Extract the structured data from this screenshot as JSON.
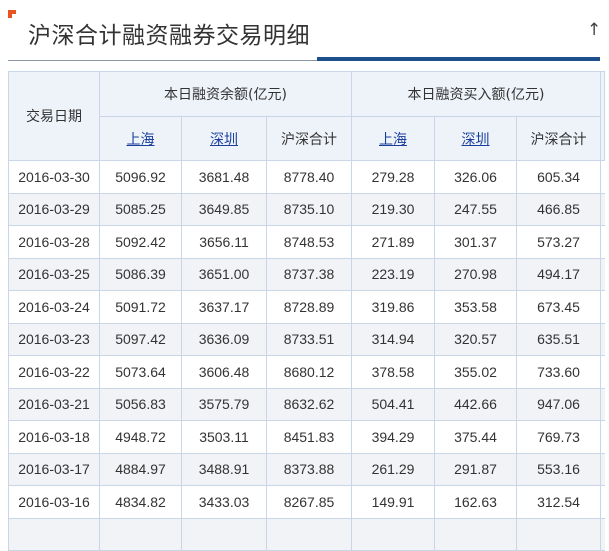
{
  "title": "沪深合计融资融券交易明细",
  "collapse_icon": "up-arrow",
  "header": {
    "date": "交易日期",
    "group1": "本日融资余额(亿元)",
    "group2": "本日融资买入额(亿元)",
    "sub": [
      "上海",
      "深圳",
      "沪深合计",
      "上海",
      "深圳",
      "沪深合计"
    ]
  },
  "rows": [
    [
      "2016-03-30",
      "5096.92",
      "3681.48",
      "8778.40",
      "279.28",
      "326.06",
      "605.34"
    ],
    [
      "2016-03-29",
      "5085.25",
      "3649.85",
      "8735.10",
      "219.30",
      "247.55",
      "466.85"
    ],
    [
      "2016-03-28",
      "5092.42",
      "3656.11",
      "8748.53",
      "271.89",
      "301.37",
      "573.27"
    ],
    [
      "2016-03-25",
      "5086.39",
      "3651.00",
      "8737.38",
      "223.19",
      "270.98",
      "494.17"
    ],
    [
      "2016-03-24",
      "5091.72",
      "3637.17",
      "8728.89",
      "319.86",
      "353.58",
      "673.45"
    ],
    [
      "2016-03-23",
      "5097.42",
      "3636.09",
      "8733.51",
      "314.94",
      "320.57",
      "635.51"
    ],
    [
      "2016-03-22",
      "5073.64",
      "3606.48",
      "8680.12",
      "378.58",
      "355.02",
      "733.60"
    ],
    [
      "2016-03-21",
      "5056.83",
      "3575.79",
      "8632.62",
      "504.41",
      "442.66",
      "947.06"
    ],
    [
      "2016-03-18",
      "4948.72",
      "3503.11",
      "8451.83",
      "394.29",
      "375.44",
      "769.73"
    ],
    [
      "2016-03-17",
      "4884.97",
      "3488.91",
      "8373.88",
      "261.29",
      "291.87",
      "553.16"
    ],
    [
      "2016-03-16",
      "4834.82",
      "3433.03",
      "8267.85",
      "149.91",
      "162.63",
      "312.54"
    ]
  ]
}
